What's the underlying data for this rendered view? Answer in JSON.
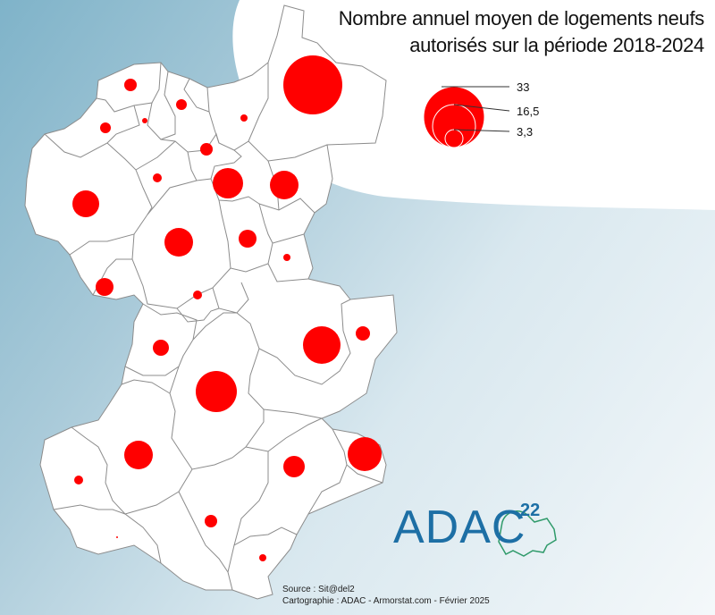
{
  "title": {
    "line1": "Nombre annuel moyen de logements neufs",
    "line2": "autorisés sur la période 2018-2024"
  },
  "legend": {
    "values": [
      33,
      16.5,
      3.3
    ],
    "labels": [
      "33",
      "16,5",
      "3,3"
    ]
  },
  "credits": {
    "source": "Source : Sit@del2",
    "cartographie": "Cartographie : ADAC - Armorstat.com - Février 2025"
  },
  "logo": {
    "text": "ADAC",
    "superscript": "22"
  },
  "colors": {
    "bubble": "#ff0000",
    "commune_fill": "#ffffff",
    "border": "#8c8c8c",
    "logo": "#1d6fa5",
    "logo_outline": "#2f9a6a"
  },
  "map": {
    "symbol": "proportional circles",
    "communes_count": 32
  }
}
